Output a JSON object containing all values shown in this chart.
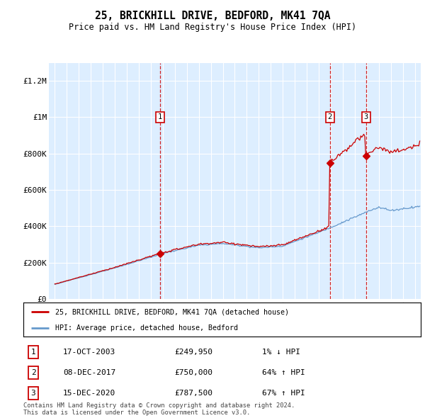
{
  "title": "25, BRICKHILL DRIVE, BEDFORD, MK41 7QA",
  "subtitle": "Price paid vs. HM Land Registry's House Price Index (HPI)",
  "property_label": "25, BRICKHILL DRIVE, BEDFORD, MK41 7QA (detached house)",
  "hpi_label": "HPI: Average price, detached house, Bedford",
  "transactions": [
    {
      "num": 1,
      "date": "17-OCT-2003",
      "price": 249950,
      "pct": "1%",
      "dir": "↓"
    },
    {
      "num": 2,
      "date": "08-DEC-2017",
      "price": 750000,
      "pct": "64%",
      "dir": "↑"
    },
    {
      "num": 3,
      "date": "15-DEC-2020",
      "price": 787500,
      "pct": "67%",
      "dir": "↑"
    }
  ],
  "transaction_years": [
    2003.79,
    2017.93,
    2020.95
  ],
  "transaction_prices": [
    249950,
    750000,
    787500
  ],
  "footer": "Contains HM Land Registry data © Crown copyright and database right 2024.\nThis data is licensed under the Open Government Licence v3.0.",
  "property_color": "#cc0000",
  "hpi_color": "#6699cc",
  "plot_bg_color": "#ddeeff",
  "ylim": [
    0,
    1300000
  ],
  "yticks": [
    0,
    200000,
    400000,
    600000,
    800000,
    1000000,
    1200000
  ],
  "ytick_labels": [
    "£0",
    "£200K",
    "£400K",
    "£600K",
    "£800K",
    "£1M",
    "£1.2M"
  ],
  "xlim_start": 1994.5,
  "xlim_end": 2025.5,
  "xticks": [
    1995,
    1996,
    1997,
    1998,
    1999,
    2000,
    2001,
    2002,
    2003,
    2004,
    2005,
    2006,
    2007,
    2008,
    2009,
    2010,
    2011,
    2012,
    2013,
    2014,
    2015,
    2016,
    2017,
    2018,
    2019,
    2020,
    2021,
    2022,
    2023,
    2024,
    2025
  ]
}
